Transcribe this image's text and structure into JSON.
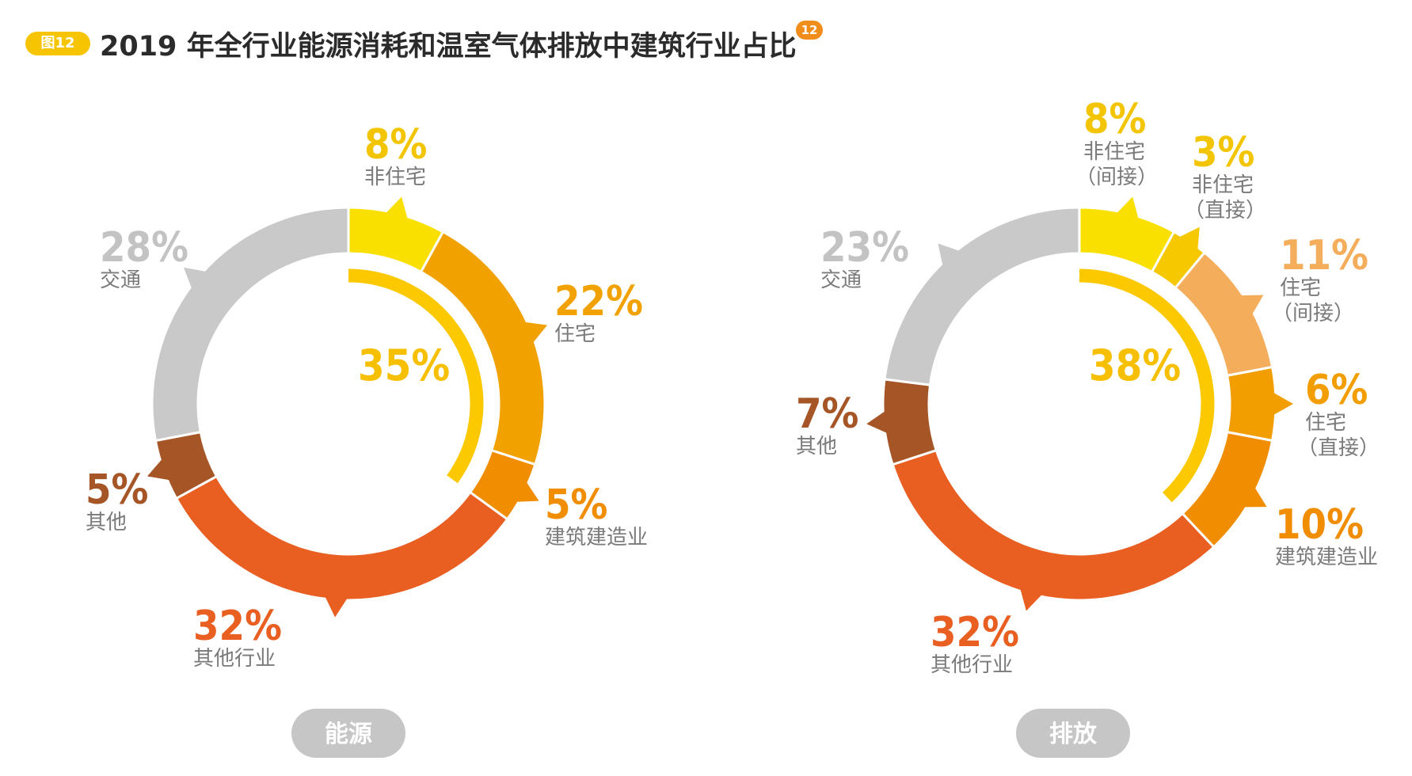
{
  "header": {
    "badge": "图12",
    "title": "2019 年全行业能源消耗和温室气体排放中建筑行业占比",
    "note": "12"
  },
  "chart_data": [
    {
      "type": "donut",
      "name": "能源",
      "center_value": "35%",
      "inner_arc_value": 35,
      "series": [
        {
          "name": "非住宅",
          "value": 8,
          "color": "#f9e000"
        },
        {
          "name": "住宅",
          "value": 22,
          "color": "#f2a200"
        },
        {
          "name": "建筑建造业",
          "value": 5,
          "color": "#f08d00"
        },
        {
          "name": "其他行业",
          "value": 32,
          "color": "#e95f22"
        },
        {
          "name": "其他",
          "value": 5,
          "color": "#a65526"
        },
        {
          "name": "交通",
          "value": 28,
          "color": "#c9c9c9"
        }
      ],
      "labels": [
        {
          "pct": "8%",
          "lines": [
            "非住宅"
          ],
          "color": "#f2c500"
        },
        {
          "pct": "22%",
          "lines": [
            "住宅"
          ],
          "color": "#f2a200"
        },
        {
          "pct": "5%",
          "lines": [
            "建筑建造业"
          ],
          "color": "#f08d00"
        },
        {
          "pct": "32%",
          "lines": [
            "其他行业"
          ],
          "color": "#e95f22"
        },
        {
          "pct": "5%",
          "lines": [
            "其他"
          ],
          "color": "#a65526"
        },
        {
          "pct": "28%",
          "lines": [
            "交通"
          ],
          "color": "#c3c3c3"
        }
      ],
      "pill": "能源"
    },
    {
      "type": "donut",
      "name": "排放",
      "center_value": "38%",
      "inner_arc_value": 38,
      "series": [
        {
          "name": "非住宅（间接）",
          "value": 8,
          "color": "#f9e000"
        },
        {
          "name": "非住宅（直接）",
          "value": 3,
          "color": "#f5c800"
        },
        {
          "name": "住宅（间接）",
          "value": 11,
          "color": "#f4ad5a"
        },
        {
          "name": "住宅（直接）",
          "value": 6,
          "color": "#f29d00"
        },
        {
          "name": "建筑建造业",
          "value": 10,
          "color": "#f08d00"
        },
        {
          "name": "其他行业",
          "value": 32,
          "color": "#e95f22"
        },
        {
          "name": "其他",
          "value": 7,
          "color": "#a65526"
        },
        {
          "name": "交通",
          "value": 23,
          "color": "#c9c9c9"
        }
      ],
      "labels": [
        {
          "pct": "8%",
          "lines": [
            "非住宅",
            "（间接）"
          ],
          "color": "#f2c500"
        },
        {
          "pct": "3%",
          "lines": [
            "非住宅",
            "（直接）"
          ],
          "color": "#f2c500"
        },
        {
          "pct": "11%",
          "lines": [
            "住宅",
            "（间接）"
          ],
          "color": "#f4ad5a"
        },
        {
          "pct": "6%",
          "lines": [
            "住宅",
            "（直接）"
          ],
          "color": "#f29d00"
        },
        {
          "pct": "10%",
          "lines": [
            "建筑建造业"
          ],
          "color": "#f08d00"
        },
        {
          "pct": "32%",
          "lines": [
            "其他行业"
          ],
          "color": "#e95f22"
        },
        {
          "pct": "7%",
          "lines": [
            "其他"
          ],
          "color": "#a65526"
        },
        {
          "pct": "23%",
          "lines": [
            "交通"
          ],
          "color": "#c3c3c3"
        }
      ],
      "pill": "排放"
    }
  ]
}
